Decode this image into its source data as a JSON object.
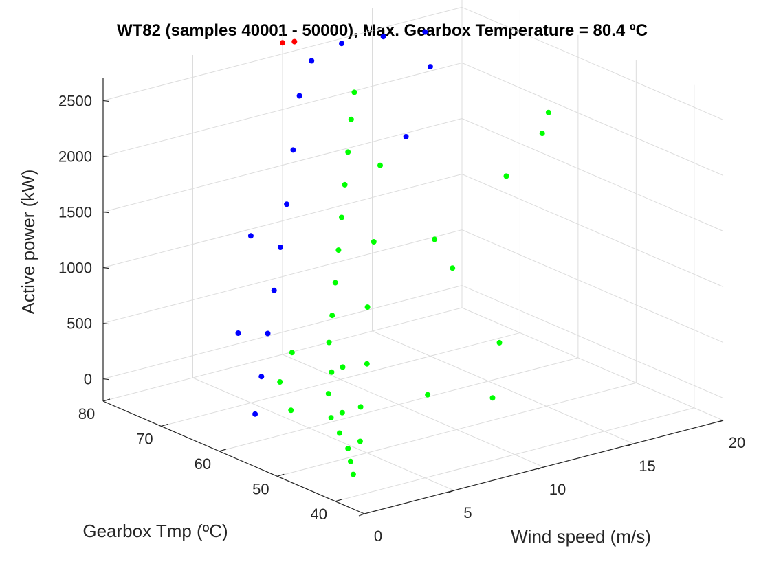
{
  "chart_data": {
    "type": "scatter",
    "title": "WT82 (samples 40001 - 50000), Max. Gearbox Temperature = 80.4 ºC",
    "axes": {
      "x": {
        "label": "Wind speed (m/s)",
        "range": [
          0,
          20
        ],
        "ticks": [
          "0",
          "5",
          "10",
          "15",
          "20"
        ]
      },
      "y": {
        "label": "Gearbox Tmp (ºC)",
        "range": [
          35,
          80
        ],
        "ticks": [
          "40",
          "50",
          "60",
          "70",
          "80"
        ]
      },
      "z": {
        "label": "Active power (kW)",
        "range": [
          -200,
          2700
        ],
        "ticks": [
          "0",
          "500",
          "1000",
          "1500",
          "2000",
          "2500"
        ]
      }
    },
    "grid": true,
    "series": [
      {
        "color": "#00ff00",
        "points": [
          [
            1,
            40,
            0
          ],
          [
            1.5,
            42,
            50
          ],
          [
            2,
            44,
            100
          ],
          [
            2.5,
            47,
            150
          ],
          [
            3,
            50,
            200
          ],
          [
            3.5,
            52,
            350
          ],
          [
            4,
            53,
            500
          ],
          [
            4.5,
            55,
            700
          ],
          [
            5,
            56,
            900
          ],
          [
            5.5,
            57,
            1150
          ],
          [
            6,
            58,
            1400
          ],
          [
            6.5,
            59,
            1650
          ],
          [
            7,
            60,
            1900
          ],
          [
            7.5,
            61,
            2150
          ],
          [
            8,
            62,
            2400
          ],
          [
            8.5,
            63,
            2600
          ],
          [
            3,
            45,
            100
          ],
          [
            4,
            48,
            300
          ],
          [
            5,
            50,
            600
          ],
          [
            6,
            53,
            1000
          ],
          [
            7,
            55,
            1500
          ],
          [
            8,
            57,
            2100
          ],
          [
            4,
            60,
            0
          ],
          [
            5,
            65,
            100
          ],
          [
            6,
            66,
            300
          ],
          [
            2,
            45,
            400
          ],
          [
            3,
            48,
            700
          ],
          [
            10,
            55,
            0
          ],
          [
            12,
            50,
            0
          ],
          [
            14,
            55,
            300
          ],
          [
            18,
            60,
            1900
          ],
          [
            19,
            62,
            2000
          ],
          [
            16,
            60,
            1600
          ],
          [
            12,
            60,
            1200
          ],
          [
            13,
            60,
            900
          ]
        ]
      },
      {
        "color": "#0000ff",
        "points": [
          [
            2,
            60,
            50
          ],
          [
            3,
            62,
            300
          ],
          [
            4,
            64,
            600
          ],
          [
            5,
            66,
            900
          ],
          [
            6,
            68,
            1200
          ],
          [
            7,
            70,
            1500
          ],
          [
            8,
            72,
            1900
          ],
          [
            9,
            74,
            2300
          ],
          [
            10,
            75,
            2550
          ],
          [
            12,
            76,
            2600
          ],
          [
            14,
            75,
            2600
          ],
          [
            16,
            74,
            2580
          ],
          [
            15,
            70,
            2400
          ],
          [
            5,
            70,
            1300
          ],
          [
            3,
            66,
            600
          ],
          [
            13,
            68,
            1900
          ]
        ]
      },
      {
        "color": "#ff0000",
        "points": [
          [
            10,
            80,
            2600
          ],
          [
            10.5,
            79.5,
            2600
          ]
        ]
      }
    ]
  }
}
